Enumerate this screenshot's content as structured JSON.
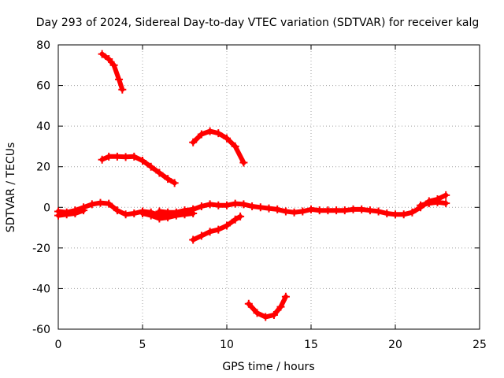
{
  "chart_data": {
    "type": "scatter",
    "title": "Day 293 of 2024, Sidereal Day-to-day VTEC variation (SDTVAR) for receiver kalg",
    "xlabel": "GPS time / hours",
    "ylabel": "SDTVAR / TECUs",
    "xlim": [
      0,
      25
    ],
    "ylim": [
      -60,
      80
    ],
    "xticks": [
      0,
      5,
      10,
      15,
      20,
      25
    ],
    "yticks": [
      -60,
      -40,
      -20,
      0,
      20,
      40,
      60,
      80
    ],
    "grid": true,
    "marker": "+",
    "color": "#ff0000",
    "series": [
      {
        "name": "track-main",
        "points": [
          [
            0,
            -2
          ],
          [
            0.5,
            -2.5
          ],
          [
            1,
            -1.5
          ],
          [
            1.5,
            0
          ],
          [
            2,
            1.5
          ],
          [
            2.5,
            2.2
          ],
          [
            3,
            1.8
          ],
          [
            3.5,
            -1.5
          ],
          [
            4,
            -3.5
          ],
          [
            4.5,
            -3
          ],
          [
            5,
            -2
          ],
          [
            5.5,
            -2.5
          ],
          [
            6,
            -4
          ],
          [
            6.5,
            -4
          ],
          [
            7,
            -3
          ],
          [
            7.5,
            -2
          ],
          [
            8,
            -1
          ],
          [
            8.5,
            0.5
          ],
          [
            9,
            1.5
          ],
          [
            9.5,
            1
          ],
          [
            10,
            1
          ],
          [
            10.5,
            1.8
          ],
          [
            11,
            1.5
          ],
          [
            11.5,
            0.5
          ],
          [
            12,
            0
          ],
          [
            12.5,
            -0.5
          ],
          [
            13,
            -1
          ],
          [
            13.5,
            -2
          ],
          [
            14,
            -2.5
          ],
          [
            14.5,
            -2
          ],
          [
            15,
            -1
          ],
          [
            15.5,
            -1.5
          ],
          [
            16,
            -1.5
          ],
          [
            16.5,
            -1.5
          ],
          [
            17,
            -1.5
          ],
          [
            17.5,
            -1
          ],
          [
            18,
            -1
          ],
          [
            18.5,
            -1.5
          ],
          [
            19,
            -2
          ],
          [
            19.5,
            -3
          ],
          [
            20,
            -3.5
          ],
          [
            20.5,
            -3.5
          ],
          [
            21,
            -2.5
          ],
          [
            21.5,
            0
          ],
          [
            22,
            3
          ],
          [
            22.5,
            4
          ],
          [
            23,
            6
          ]
        ]
      },
      {
        "name": "track-wide-1",
        "points": [
          [
            0,
            -4
          ],
          [
            0.5,
            -3.5
          ],
          [
            1,
            -3
          ],
          [
            1.5,
            -1.5
          ]
        ]
      },
      {
        "name": "track-lower-1",
        "points": [
          [
            5,
            -3
          ],
          [
            5.5,
            -4
          ],
          [
            6,
            -5.5
          ],
          [
            6.5,
            -5
          ],
          [
            7,
            -4
          ],
          [
            7.5,
            -3.5
          ],
          [
            8,
            -3
          ]
        ]
      },
      {
        "name": "track-lower-2",
        "points": [
          [
            6,
            -2
          ],
          [
            6.5,
            -2.5
          ],
          [
            7,
            -2.5
          ],
          [
            7.5,
            -1.5
          ],
          [
            8,
            -1
          ]
        ]
      },
      {
        "name": "track-end-1",
        "points": [
          [
            21.5,
            1
          ],
          [
            22,
            2
          ],
          [
            22.5,
            2.5
          ],
          [
            23,
            2
          ]
        ]
      },
      {
        "name": "track-high",
        "points": [
          [
            2.6,
            75.5
          ],
          [
            3,
            73
          ],
          [
            3.3,
            70
          ],
          [
            3.6,
            63
          ],
          [
            3.8,
            58
          ]
        ]
      },
      {
        "name": "track-upper",
        "points": [
          [
            2.6,
            23.5
          ],
          [
            3,
            25
          ],
          [
            3.5,
            25
          ],
          [
            4,
            24.8
          ],
          [
            4.5,
            25
          ],
          [
            5,
            23
          ],
          [
            5.5,
            20
          ],
          [
            6,
            17
          ],
          [
            6.5,
            14
          ],
          [
            6.9,
            12
          ]
        ]
      },
      {
        "name": "track-arch",
        "points": [
          [
            8,
            32
          ],
          [
            8.5,
            36
          ],
          [
            9,
            37.5
          ],
          [
            9.5,
            36.5
          ],
          [
            10,
            34
          ],
          [
            10.5,
            30
          ],
          [
            11,
            22
          ]
        ]
      },
      {
        "name": "track-neg",
        "points": [
          [
            8,
            -16
          ],
          [
            8.5,
            -14
          ],
          [
            9,
            -12
          ],
          [
            9.5,
            -11
          ],
          [
            10,
            -9
          ],
          [
            10.5,
            -6
          ],
          [
            10.8,
            -4.5
          ]
        ]
      },
      {
        "name": "track-bowl",
        "points": [
          [
            11.3,
            -47.5
          ],
          [
            11.8,
            -52
          ],
          [
            12.3,
            -54
          ],
          [
            12.8,
            -53
          ],
          [
            13.2,
            -49
          ],
          [
            13.5,
            -44
          ]
        ]
      }
    ]
  }
}
